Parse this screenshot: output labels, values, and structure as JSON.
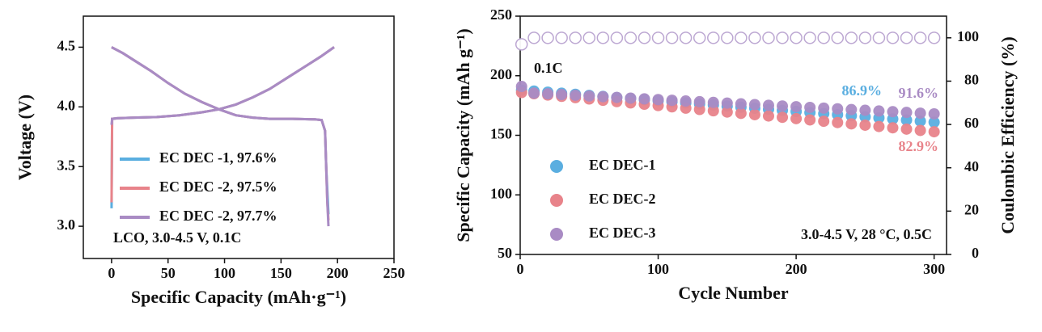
{
  "chart_data": [
    {
      "type": "line",
      "xlabel": "Specific Capacity (mAh·g⁻¹)",
      "ylabel": "Voltage (V)",
      "xlim": [
        -25,
        250
      ],
      "xticks": [
        0,
        50,
        100,
        150,
        200,
        250
      ],
      "ylim": [
        2.73,
        4.76
      ],
      "yticks": [
        {
          "value": 3,
          "label": "3.0"
        },
        {
          "value": 3.5,
          "label": "3.5"
        },
        {
          "value": 4,
          "label": "4.0"
        },
        {
          "value": 4.5,
          "label": "4.5"
        }
      ],
      "annotations": [
        {
          "text": "LCO, 3.0-4.5 V, 0.1C"
        }
      ],
      "series": [
        {
          "name": "EC DEC -1, 97.6%",
          "color": "#5aaee0",
          "x": [
            0,
            0.5,
            5,
            20,
            40,
            60,
            80,
            95,
            110,
            125,
            140,
            155,
            170,
            185,
            197,
            null,
            0,
            10,
            20,
            35,
            50,
            65,
            80,
            95,
            110,
            125,
            140,
            160,
            180,
            186,
            189,
            190,
            191,
            192
          ],
          "values": [
            3.15,
            3.9,
            3.905,
            3.91,
            3.915,
            3.93,
            3.955,
            3.98,
            4.02,
            4.08,
            4.15,
            4.24,
            4.33,
            4.42,
            4.5,
            null,
            4.5,
            4.45,
            4.39,
            4.3,
            4.2,
            4.11,
            4.04,
            3.98,
            3.93,
            3.91,
            3.9,
            3.9,
            3.895,
            3.89,
            3.8,
            3.5,
            3.3,
            3.1
          ]
        },
        {
          "name": "EC DEC -2, 97.5%",
          "color": "#e8838a",
          "x": [
            0,
            0.5,
            5,
            20,
            40,
            60,
            80,
            95,
            110,
            125,
            140,
            155,
            170,
            185,
            197,
            null,
            0,
            10,
            20,
            35,
            50,
            65,
            80,
            95,
            110,
            125,
            140,
            160,
            180,
            186,
            189,
            190,
            191,
            192
          ],
          "values": [
            3.2,
            3.9,
            3.905,
            3.91,
            3.915,
            3.93,
            3.955,
            3.98,
            4.02,
            4.08,
            4.15,
            4.24,
            4.33,
            4.42,
            4.5,
            null,
            4.5,
            4.45,
            4.39,
            4.3,
            4.2,
            4.11,
            4.04,
            3.98,
            3.93,
            3.91,
            3.9,
            3.9,
            3.895,
            3.89,
            3.8,
            3.5,
            3.2,
            3.05
          ]
        },
        {
          "name": "EC DEC -2, 97.7%",
          "color": "#a98bc4",
          "x": [
            0,
            0.5,
            5,
            20,
            40,
            60,
            80,
            95,
            110,
            125,
            140,
            155,
            170,
            185,
            197,
            null,
            0,
            10,
            20,
            35,
            50,
            65,
            80,
            95,
            110,
            125,
            140,
            160,
            180,
            186,
            189,
            190,
            191,
            192
          ],
          "values": [
            3.85,
            3.9,
            3.905,
            3.91,
            3.915,
            3.93,
            3.955,
            3.98,
            4.02,
            4.08,
            4.15,
            4.24,
            4.33,
            4.42,
            4.5,
            null,
            4.5,
            4.45,
            4.39,
            4.3,
            4.2,
            4.11,
            4.04,
            3.98,
            3.93,
            3.91,
            3.9,
            3.9,
            3.895,
            3.89,
            3.8,
            3.5,
            3.2,
            3.0
          ]
        }
      ]
    },
    {
      "type": "scatter",
      "xlabel": "Cycle Number",
      "ylabel": "Specific Capacity (mAh g⁻¹)",
      "y2label": "Coulombic Efficiency (%)",
      "xlim": [
        0,
        309
      ],
      "xticks": [
        0,
        100,
        200,
        300
      ],
      "ylim": [
        50,
        250
      ],
      "yticks": [
        50,
        100,
        150,
        200,
        250
      ],
      "y2lim": [
        0,
        110
      ],
      "y2ticks": [
        0,
        20,
        40,
        60,
        80,
        100
      ],
      "annotations": [
        {
          "text": "0.1C"
        },
        {
          "text": "86.9%",
          "color": "#5aaee0"
        },
        {
          "text": "91.6%",
          "color": "#a98bc4"
        },
        {
          "text": "82.9%",
          "color": "#e8838a"
        },
        {
          "text": "3.0-4.5 V, 28 °C, 0.5C"
        }
      ],
      "x": [
        1,
        10,
        20,
        30,
        40,
        50,
        60,
        70,
        80,
        90,
        100,
        110,
        120,
        130,
        140,
        150,
        160,
        170,
        180,
        190,
        200,
        210,
        220,
        230,
        240,
        250,
        260,
        270,
        280,
        290,
        300
      ],
      "series": [
        {
          "name": "EC DEC-1",
          "color": "#5aaee0",
          "values": [
            187.9,
            187.1,
            186.2,
            185.3,
            184.4,
            183.5,
            182.6,
            181.7,
            180.8,
            179.9,
            179,
            178.1,
            177.2,
            176.3,
            175.4,
            174.5,
            173.6,
            172.7,
            171.8,
            170.9,
            170,
            169.1,
            168.2,
            167.3,
            166.4,
            165.5,
            164.6,
            163.7,
            162.8,
            161.9,
            161
          ]
        },
        {
          "name": "EC DEC-2",
          "color": "#e8838a",
          "values": [
            185.9,
            184.9,
            183.8,
            182.7,
            181.6,
            180.5,
            179.4,
            178.3,
            177.2,
            176.1,
            175,
            173.9,
            172.8,
            171.7,
            170.6,
            169.5,
            168.4,
            167.3,
            166.2,
            165.1,
            164,
            162.9,
            161.8,
            160.7,
            159.6,
            158.5,
            157.4,
            156.3,
            155.2,
            154.1,
            153
          ]
        },
        {
          "name": "EC DEC-3",
          "color": "#a98bc4",
          "values": [
            191,
            185.4,
            184.8,
            184.2,
            183.6,
            183,
            182.4,
            181.8,
            181.2,
            180.6,
            180,
            179.4,
            178.8,
            178.2,
            177.6,
            177,
            176.4,
            175.8,
            175.2,
            174.6,
            174,
            173.4,
            172.8,
            172.2,
            171.6,
            171,
            170.4,
            169.8,
            169.2,
            168.6,
            168
          ]
        },
        {
          "axis": "y2",
          "color": "#ffffff",
          "values": [
            97,
            100,
            100,
            100,
            100,
            100,
            100,
            100,
            100,
            100,
            100,
            100,
            100,
            100,
            100,
            100,
            100,
            100,
            100,
            100,
            100,
            100,
            100,
            100,
            100,
            100,
            100,
            100,
            100,
            100,
            100
          ]
        }
      ]
    }
  ]
}
